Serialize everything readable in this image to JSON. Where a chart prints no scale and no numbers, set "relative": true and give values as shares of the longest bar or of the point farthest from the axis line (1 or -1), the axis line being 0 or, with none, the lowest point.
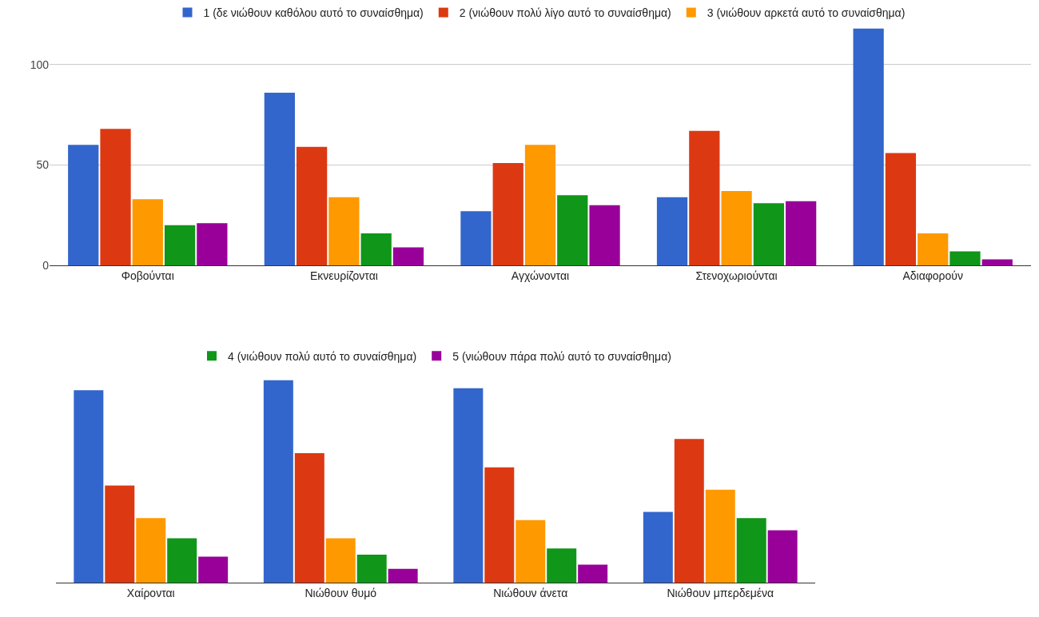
{
  "chart_data": [
    {
      "type": "bar",
      "categories": [
        "Φοβούνται",
        "Εκνευρίζονται",
        "Αγχώνονται",
        "Στενοχωριούνται",
        "Αδιαφορούν"
      ],
      "ylim": [
        0,
        118
      ],
      "yticks": [
        0,
        50,
        100
      ],
      "grid": true,
      "legend": "top",
      "series": [
        {
          "name": "1 (δε νιώθουν καθόλου αυτό το συναίσθημα)",
          "color": "#3366cc",
          "values": [
            60,
            86,
            27,
            34,
            118
          ]
        },
        {
          "name": "2 (νιώθουν πολύ λίγο αυτό το συναίσθημα)",
          "color": "#dc3912",
          "values": [
            68,
            59,
            51,
            67,
            56
          ]
        },
        {
          "name": "3 (νιώθουν αρκετά αυτό το συναίσθημα)",
          "color": "#ff9900",
          "values": [
            33,
            34,
            60,
            37,
            16
          ]
        },
        {
          "color": "#109618",
          "values": [
            20,
            16,
            35,
            31,
            7
          ]
        },
        {
          "color": "#990099",
          "values": [
            21,
            9,
            30,
            32,
            3
          ]
        }
      ]
    },
    {
      "type": "bar",
      "relative": true,
      "categories": [
        "Χαίρονται",
        "Νιώθουν θυμό",
        "Νιώθουν άνετα",
        "Νιώθουν μπερδεμένα"
      ],
      "legend": "top",
      "series": [
        {
          "color": "#3366cc",
          "values": [
            0.95,
            1,
            0.96,
            0.35
          ]
        },
        {
          "color": "#dc3912",
          "values": [
            0.48,
            0.64,
            0.57,
            0.71
          ]
        },
        {
          "color": "#ff9900",
          "values": [
            0.32,
            0.22,
            0.31,
            0.46
          ]
        },
        {
          "name": "4 (νιώθουν πολύ αυτό το συναίσθημα)",
          "color": "#109618",
          "values": [
            0.22,
            0.14,
            0.17,
            0.32
          ]
        },
        {
          "name": "5 (νιώθουν πάρα πολύ αυτό το συναίσθημα)",
          "color": "#990099",
          "values": [
            0.13,
            0.07,
            0.09,
            0.26
          ]
        }
      ]
    }
  ]
}
